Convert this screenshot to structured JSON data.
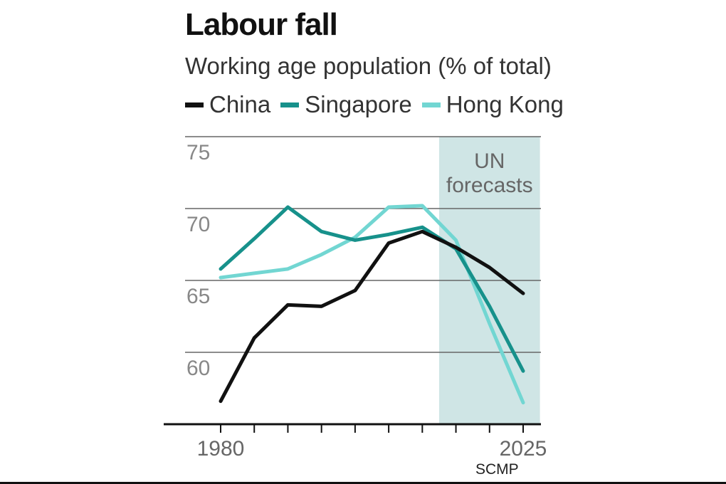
{
  "chart_data": {
    "type": "line",
    "title": "Labour fall",
    "subtitle": "Working age population (% of total)",
    "ylim": [
      55,
      75
    ],
    "yticks": [
      60,
      65,
      70,
      75
    ],
    "x": [
      1980,
      1985,
      1990,
      1995,
      2000,
      2005,
      2010,
      2015,
      2020,
      2025
    ],
    "xtick_labels": [
      "1980",
      "2025"
    ],
    "grid": true,
    "forecast_band": {
      "label_line1": "UN",
      "label_line2": "forecasts",
      "from": 2012.5,
      "to": 2027.5
    },
    "series": [
      {
        "name": "China",
        "color": "#111111",
        "values": [
          56.6,
          61.0,
          63.3,
          63.2,
          64.3,
          67.6,
          68.4,
          67.3,
          65.9,
          64.1
        ]
      },
      {
        "name": "Singapore",
        "color": "#17918b",
        "values": [
          65.8,
          67.9,
          70.1,
          68.4,
          67.8,
          68.2,
          68.7,
          67.2,
          63.2,
          58.7
        ]
      },
      {
        "name": "Hong Kong",
        "color": "#72d6d2",
        "values": [
          65.2,
          65.5,
          65.8,
          66.8,
          68.0,
          70.1,
          70.2,
          67.8,
          62.0,
          56.5
        ]
      }
    ]
  },
  "source": "SCMP"
}
